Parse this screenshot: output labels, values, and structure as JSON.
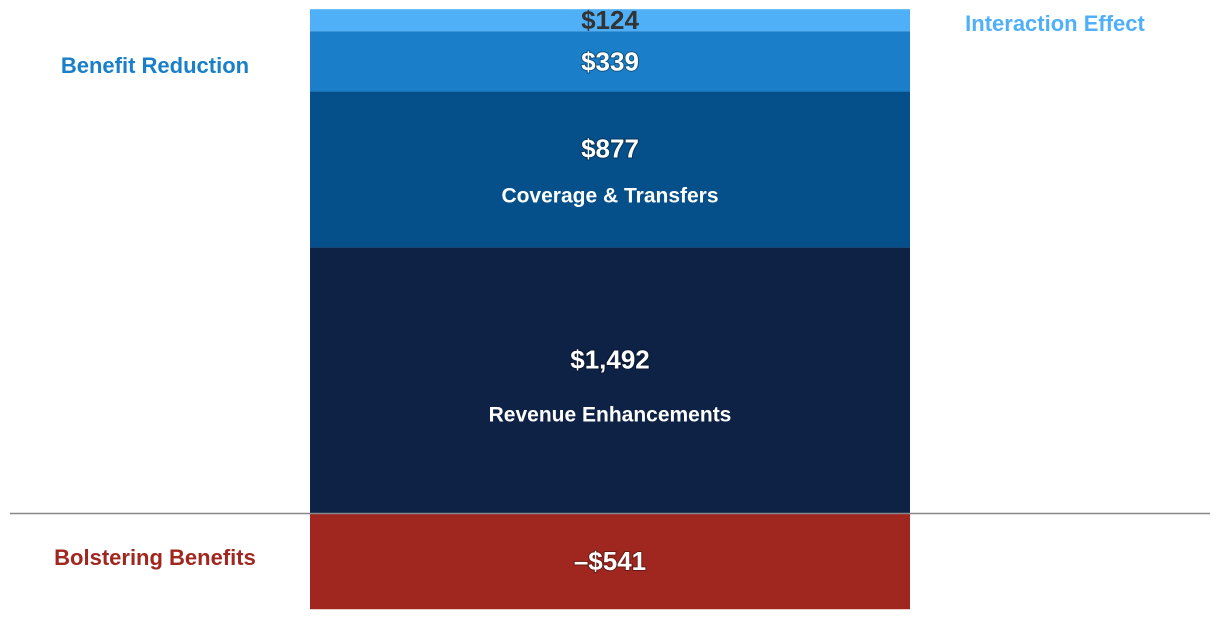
{
  "chart_data": {
    "type": "bar",
    "stacked": true,
    "segments": [
      {
        "key": "interaction",
        "value": 124,
        "value_label": "$124",
        "category": "",
        "color": "#4fb0f7",
        "text_color": "#333333"
      },
      {
        "key": "benefit_reduction",
        "value": 339,
        "value_label": "$339",
        "category": "",
        "color": "#1a7fc8",
        "text_color": "#ffffff"
      },
      {
        "key": "coverage",
        "value": 877,
        "value_label": "$877",
        "category": "Coverage & Transfers",
        "color": "#05508a",
        "text_color": "#ffffff"
      },
      {
        "key": "revenue",
        "value": 1492,
        "value_label": "$1,492",
        "category": "Revenue Enhancements",
        "color": "#0e2246",
        "text_color": "#ffffff"
      },
      {
        "key": "bolstering",
        "value": -541,
        "value_label": "–$541",
        "category": "",
        "color": "#a0271f",
        "text_color": "#ffffff"
      }
    ],
    "side_labels": [
      {
        "key": "benefit_reduction",
        "text": "Benefit Reduction",
        "color": "#1a7fc8",
        "side": "left"
      },
      {
        "key": "interaction",
        "text": "Interaction Effect",
        "color": "#4fb0f7",
        "side": "right"
      },
      {
        "key": "bolstering",
        "text": "Bolstering Benefits",
        "color": "#a0271f",
        "side": "left"
      }
    ],
    "baseline": 0,
    "axis_color": "#888888",
    "grid": false
  }
}
